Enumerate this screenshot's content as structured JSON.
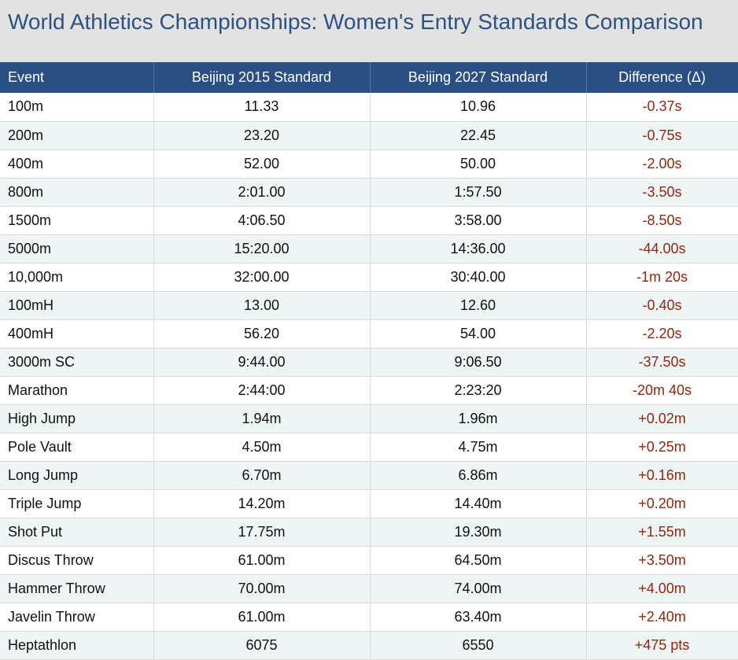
{
  "title": "World Athletics Championships: Women's Entry Standards Comparison",
  "columns": {
    "event": "Event",
    "standard_2015": "Beijing 2015 Standard",
    "standard_2027": "Beijing 2027 Standard",
    "difference": "Difference (Δ)"
  },
  "accent_colors": {
    "header_background": "#2b4f82",
    "title_text": "#2c5282",
    "difference_text": "#8b2a10",
    "stripe_background": "#eef5f5"
  },
  "rows": [
    {
      "event": "100m",
      "s2015": "11.33",
      "s2027": "10.96",
      "diff": "-0.37s"
    },
    {
      "event": "200m",
      "s2015": "23.20",
      "s2027": "22.45",
      "diff": "-0.75s"
    },
    {
      "event": "400m",
      "s2015": "52.00",
      "s2027": "50.00",
      "diff": "-2.00s"
    },
    {
      "event": "800m",
      "s2015": "2:01.00",
      "s2027": "1:57.50",
      "diff": "-3.50s"
    },
    {
      "event": "1500m",
      "s2015": "4:06.50",
      "s2027": "3:58.00",
      "diff": "-8.50s"
    },
    {
      "event": "5000m",
      "s2015": "15:20.00",
      "s2027": "14:36.00",
      "diff": "-44.00s"
    },
    {
      "event": "10,000m",
      "s2015": "32:00.00",
      "s2027": "30:40.00",
      "diff": "-1m 20s"
    },
    {
      "event": "100mH",
      "s2015": "13.00",
      "s2027": "12.60",
      "diff": "-0.40s"
    },
    {
      "event": "400mH",
      "s2015": "56.20",
      "s2027": "54.00",
      "diff": "-2.20s"
    },
    {
      "event": "3000m SC",
      "s2015": "9:44.00",
      "s2027": "9:06.50",
      "diff": "-37.50s"
    },
    {
      "event": "Marathon",
      "s2015": "2:44:00",
      "s2027": "2:23:20",
      "diff": "-20m 40s"
    },
    {
      "event": "High Jump",
      "s2015": "1.94m",
      "s2027": "1.96m",
      "diff": "+0.02m"
    },
    {
      "event": "Pole Vault",
      "s2015": "4.50m",
      "s2027": "4.75m",
      "diff": "+0.25m"
    },
    {
      "event": "Long Jump",
      "s2015": "6.70m",
      "s2027": "6.86m",
      "diff": "+0.16m"
    },
    {
      "event": "Triple Jump",
      "s2015": "14.20m",
      "s2027": "14.40m",
      "diff": "+0.20m"
    },
    {
      "event": "Shot Put",
      "s2015": "17.75m",
      "s2027": "19.30m",
      "diff": "+1.55m"
    },
    {
      "event": "Discus Throw",
      "s2015": "61.00m",
      "s2027": "64.50m",
      "diff": "+3.50m"
    },
    {
      "event": "Hammer Throw",
      "s2015": "70.00m",
      "s2027": "74.00m",
      "diff": "+4.00m"
    },
    {
      "event": "Javelin Throw",
      "s2015": "61.00m",
      "s2027": "63.40m",
      "diff": "+2.40m"
    },
    {
      "event": "Heptathlon",
      "s2015": "6075",
      "s2027": "6550",
      "diff": "+475 pts"
    }
  ]
}
